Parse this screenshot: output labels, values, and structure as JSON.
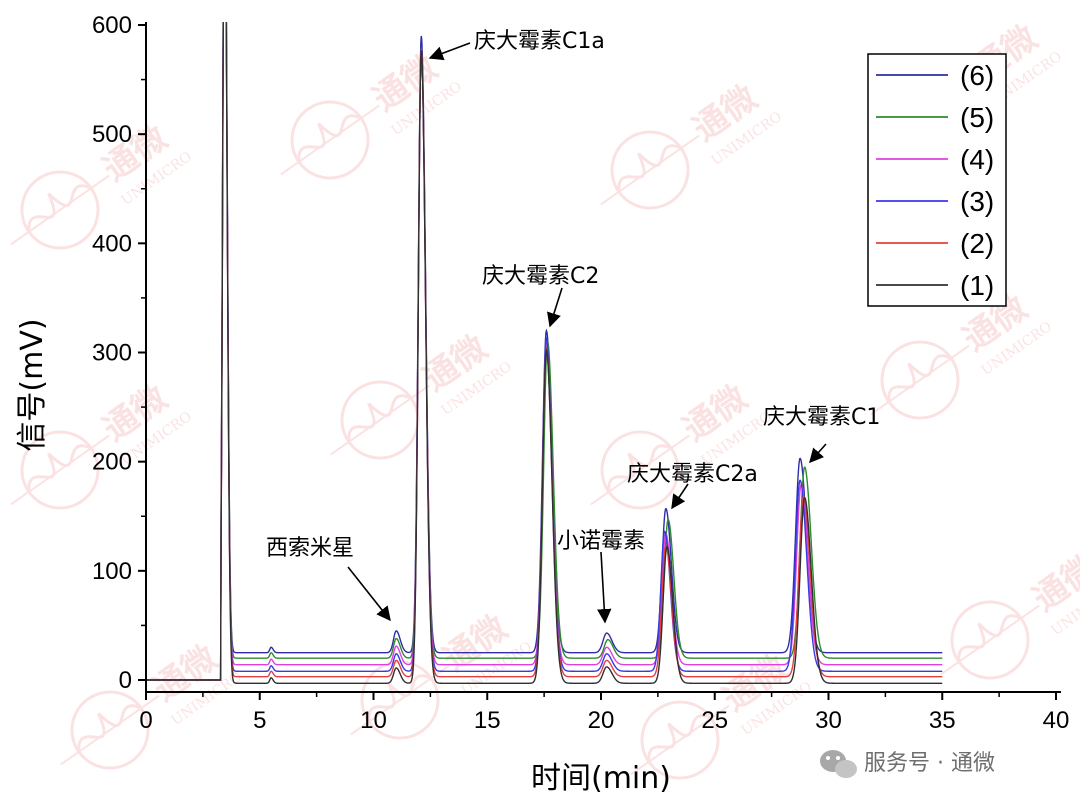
{
  "chart_data": {
    "type": "line",
    "xlabel": "时间(min)",
    "ylabel": "信号(mV)",
    "xlim": [
      0,
      40
    ],
    "ylim": [
      0,
      600
    ],
    "x_ticks": [
      "0",
      "5",
      "10",
      "15",
      "20",
      "25",
      "30",
      "35",
      "40"
    ],
    "y_ticks": [
      "0",
      "100",
      "200",
      "300",
      "400",
      "500",
      "600"
    ],
    "grid": false,
    "legend_position": "top-right",
    "series": [
      {
        "name": "(6)",
        "color": "#2e2ea8",
        "baseline": 25,
        "peaks": [
          {
            "rt": 3.45,
            "h": 760,
            "w": 0.08
          },
          {
            "rt": 5.5,
            "h": 5,
            "w": 0.06
          },
          {
            "rt": 11.0,
            "h": 20,
            "w": 0.12
          },
          {
            "rt": 12.1,
            "h": 565,
            "w": 0.13
          },
          {
            "rt": 17.6,
            "h": 295,
            "w": 0.17
          },
          {
            "rt": 20.25,
            "h": 18,
            "w": 0.16
          },
          {
            "rt": 22.85,
            "h": 132,
            "w": 0.17
          },
          {
            "rt": 28.75,
            "h": 178,
            "w": 0.2
          }
        ]
      },
      {
        "name": "(5)",
        "color": "#2e8b2e",
        "baseline": 20,
        "peaks": [
          {
            "rt": 3.45,
            "h": 760,
            "w": 0.08
          },
          {
            "rt": 5.5,
            "h": 5,
            "w": 0.06
          },
          {
            "rt": 11.0,
            "h": 18,
            "w": 0.12
          },
          {
            "rt": 12.1,
            "h": 560,
            "w": 0.13
          },
          {
            "rt": 17.65,
            "h": 290,
            "w": 0.17
          },
          {
            "rt": 20.3,
            "h": 17,
            "w": 0.16
          },
          {
            "rt": 22.95,
            "h": 127,
            "w": 0.17
          },
          {
            "rt": 28.95,
            "h": 175,
            "w": 0.2
          }
        ]
      },
      {
        "name": "(4)",
        "color": "#e040e0",
        "baseline": 14,
        "peaks": [
          {
            "rt": 3.45,
            "h": 760,
            "w": 0.08
          },
          {
            "rt": 5.5,
            "h": 5,
            "w": 0.06
          },
          {
            "rt": 11.0,
            "h": 17,
            "w": 0.12
          },
          {
            "rt": 12.1,
            "h": 565,
            "w": 0.13
          },
          {
            "rt": 17.6,
            "h": 295,
            "w": 0.17
          },
          {
            "rt": 20.25,
            "h": 16,
            "w": 0.16
          },
          {
            "rt": 22.85,
            "h": 120,
            "w": 0.17
          },
          {
            "rt": 28.8,
            "h": 165,
            "w": 0.2
          }
        ]
      },
      {
        "name": "(3)",
        "color": "#3a3ae0",
        "baseline": 8,
        "peaks": [
          {
            "rt": 3.45,
            "h": 760,
            "w": 0.08
          },
          {
            "rt": 5.5,
            "h": 5,
            "w": 0.06
          },
          {
            "rt": 11.0,
            "h": 16,
            "w": 0.12
          },
          {
            "rt": 12.1,
            "h": 572,
            "w": 0.13
          },
          {
            "rt": 17.6,
            "h": 305,
            "w": 0.17
          },
          {
            "rt": 20.25,
            "h": 16,
            "w": 0.16
          },
          {
            "rt": 22.8,
            "h": 128,
            "w": 0.17
          },
          {
            "rt": 28.75,
            "h": 175,
            "w": 0.2
          }
        ]
      },
      {
        "name": "(2)",
        "color": "#e04040",
        "baseline": 3,
        "peaks": [
          {
            "rt": 3.45,
            "h": 760,
            "w": 0.08
          },
          {
            "rt": 5.5,
            "h": 5,
            "w": 0.06
          },
          {
            "rt": 11.0,
            "h": 15,
            "w": 0.12
          },
          {
            "rt": 12.1,
            "h": 575,
            "w": 0.13
          },
          {
            "rt": 17.6,
            "h": 300,
            "w": 0.17
          },
          {
            "rt": 20.25,
            "h": 15,
            "w": 0.16
          },
          {
            "rt": 22.85,
            "h": 120,
            "w": 0.17
          },
          {
            "rt": 28.9,
            "h": 165,
            "w": 0.2
          }
        ]
      },
      {
        "name": "(1)",
        "color": "#303030",
        "baseline": -3,
        "peaks": [
          {
            "rt": 3.45,
            "h": 760,
            "w": 0.08
          },
          {
            "rt": 5.5,
            "h": 5,
            "w": 0.06
          },
          {
            "rt": 11.0,
            "h": 14,
            "w": 0.12
          },
          {
            "rt": 12.1,
            "h": 580,
            "w": 0.13
          },
          {
            "rt": 17.6,
            "h": 305,
            "w": 0.17
          },
          {
            "rt": 20.25,
            "h": 15,
            "w": 0.16
          },
          {
            "rt": 22.9,
            "h": 125,
            "w": 0.17
          },
          {
            "rt": 28.95,
            "h": 170,
            "w": 0.2
          }
        ]
      }
    ],
    "annotations": [
      {
        "text": "庆大霉素C1a",
        "peak_x": 12.1,
        "peak_y": 588
      },
      {
        "text": "庆大霉素C2",
        "peak_x": 17.6,
        "peak_y": 322
      },
      {
        "text": "西索米星",
        "peak_x": 11.0,
        "peak_y": 46
      },
      {
        "text": "小诺霉素",
        "peak_x": 20.25,
        "peak_y": 44
      },
      {
        "text": "庆大霉素C2a",
        "peak_x": 22.9,
        "peak_y": 158
      },
      {
        "text": "庆大霉素C1",
        "peak_x": 28.9,
        "peak_y": 202
      }
    ]
  },
  "watermark": {
    "brand": "通微",
    "brand_latin": "UNIMICRO",
    "source_text": "服务号 · 通微",
    "color": "#e85050"
  }
}
